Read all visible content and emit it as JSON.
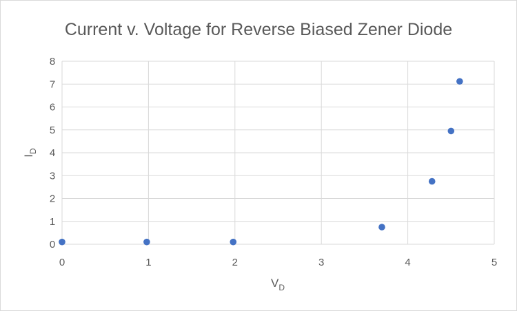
{
  "chart_data": {
    "type": "scatter",
    "title": "Current v. Voltage for Reverse Biased Zener Diode",
    "xlabel": {
      "main": "V",
      "subscript": "D"
    },
    "ylabel": {
      "main": "I",
      "subscript": "D"
    },
    "xlim": [
      0,
      5
    ],
    "ylim": [
      0,
      8
    ],
    "x_ticks": [
      0,
      1,
      2,
      3,
      4,
      5
    ],
    "y_ticks": [
      0,
      1,
      2,
      3,
      4,
      5,
      6,
      7,
      8
    ],
    "grid": true,
    "legend": "none",
    "series": [
      {
        "color": "#4472c4",
        "points": [
          {
            "x": 0.0,
            "y": 0.1
          },
          {
            "x": 0.98,
            "y": 0.1
          },
          {
            "x": 1.98,
            "y": 0.1
          },
          {
            "x": 3.7,
            "y": 0.75
          },
          {
            "x": 4.28,
            "y": 2.75
          },
          {
            "x": 4.5,
            "y": 4.95
          },
          {
            "x": 4.6,
            "y": 7.12
          }
        ]
      }
    ]
  },
  "colors": {
    "grid": "#d9d9d9",
    "text": "#595959",
    "marker": "#4472c4"
  }
}
